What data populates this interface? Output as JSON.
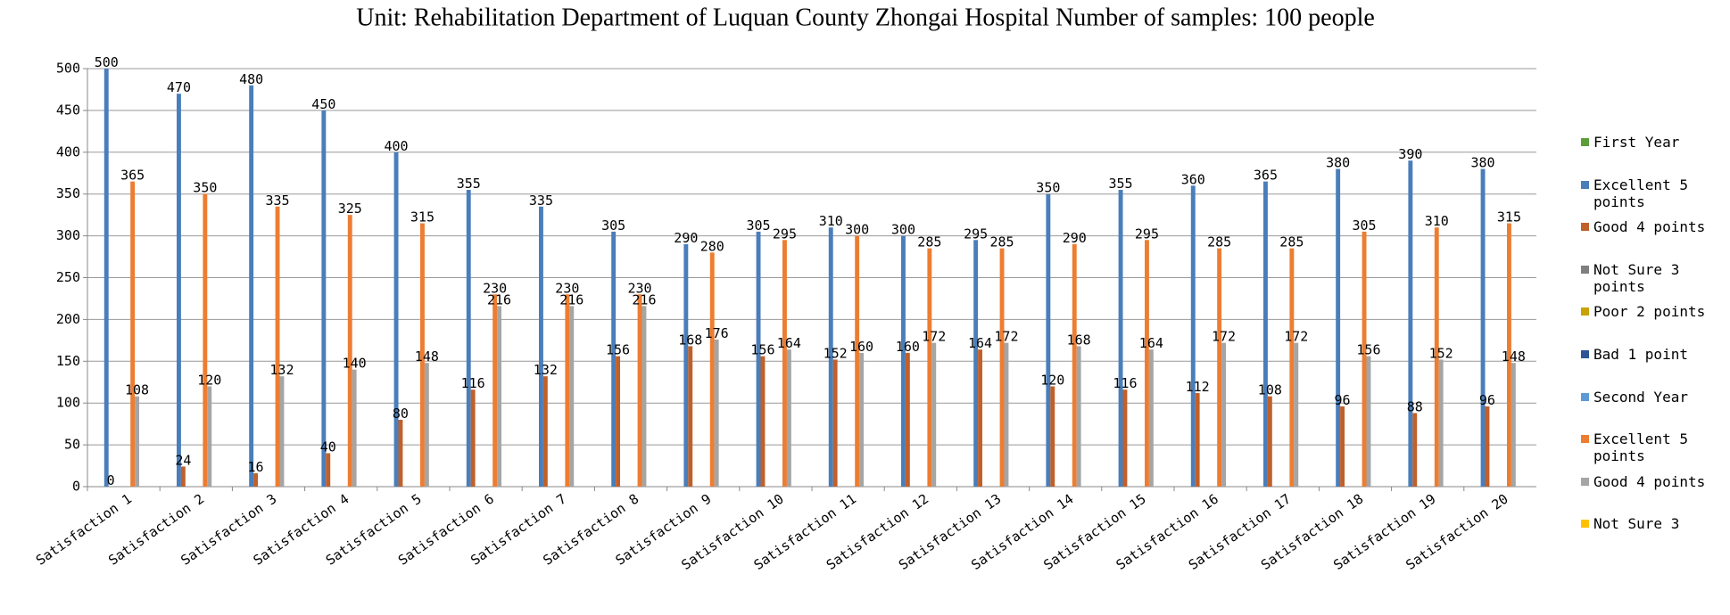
{
  "chart_data": {
    "type": "bar",
    "title": "Unit: Rehabilitation Department of Luquan County Zhongai Hospital    Number of samples: 100 people",
    "categories": [
      "Satisfaction 1",
      "Satisfaction 2",
      "Satisfaction 3",
      "Satisfaction 4",
      "Satisfaction 5",
      "Satisfaction 6",
      "Satisfaction 7",
      "Satisfaction 8",
      "Satisfaction 9",
      "Satisfaction 10",
      "Satisfaction 11",
      "Satisfaction 12",
      "Satisfaction 13",
      "Satisfaction 14",
      "Satisfaction 15",
      "Satisfaction 16",
      "Satisfaction 17",
      "Satisfaction 18",
      "Satisfaction 19",
      "Satisfaction 20"
    ],
    "series": [
      {
        "name": "First Year",
        "color": "#5a9e3a",
        "values": [
          0,
          0,
          0,
          0,
          0,
          0,
          0,
          0,
          0,
          0,
          0,
          0,
          0,
          0,
          0,
          0,
          0,
          0,
          0,
          0
        ]
      },
      {
        "name": "Excellent 5 points",
        "color": "#4a7ebb",
        "values": [
          500,
          470,
          480,
          450,
          400,
          355,
          335,
          305,
          290,
          305,
          310,
          300,
          295,
          350,
          355,
          360,
          365,
          380,
          390,
          380
        ]
      },
      {
        "name": "Good 4 points",
        "color": "#c0602a",
        "values": [
          0,
          24,
          16,
          40,
          80,
          116,
          132,
          156,
          168,
          156,
          152,
          160,
          164,
          120,
          116,
          112,
          108,
          96,
          88,
          96
        ]
      },
      {
        "name": "Not Sure 3 points",
        "color": "#7f7f7f",
        "values": [
          0,
          0,
          0,
          0,
          0,
          0,
          0,
          0,
          0,
          0,
          0,
          0,
          0,
          0,
          0,
          0,
          0,
          0,
          0,
          0
        ]
      },
      {
        "name": "Poor 2 points",
        "color": "#c9a100",
        "values": [
          0,
          0,
          0,
          0,
          0,
          0,
          0,
          0,
          0,
          0,
          0,
          0,
          0,
          0,
          0,
          0,
          0,
          0,
          0,
          0
        ]
      },
      {
        "name": "Bad 1 point",
        "color": "#2f5597",
        "values": [
          0,
          0,
          0,
          0,
          0,
          0,
          0,
          0,
          0,
          0,
          0,
          0,
          0,
          0,
          0,
          0,
          0,
          0,
          0,
          0
        ]
      },
      {
        "name": "Second Year",
        "color": "#5b9bd5",
        "values": [
          0,
          0,
          0,
          0,
          0,
          0,
          0,
          0,
          0,
          0,
          0,
          0,
          0,
          0,
          0,
          0,
          0,
          0,
          0,
          0
        ]
      },
      {
        "name": "Excellent 5 points",
        "color": "#ed7d31",
        "values": [
          365,
          350,
          335,
          325,
          315,
          230,
          230,
          230,
          280,
          295,
          300,
          285,
          285,
          290,
          295,
          285,
          285,
          305,
          310,
          315
        ]
      },
      {
        "name": "Good 4 points",
        "color": "#a5a5a5",
        "values": [
          108,
          120,
          132,
          140,
          148,
          216,
          216,
          216,
          176,
          164,
          160,
          172,
          172,
          168,
          164,
          172,
          172,
          156,
          152,
          148
        ]
      },
      {
        "name": "Not Sure 3",
        "color": "#ffc000",
        "values": [
          0,
          0,
          0,
          0,
          0,
          0,
          0,
          0,
          0,
          0,
          0,
          0,
          0,
          0,
          0,
          0,
          0,
          0,
          0,
          0
        ]
      }
    ],
    "ylim": [
      0,
      500
    ],
    "yticks": [
      0,
      50,
      100,
      150,
      200,
      250,
      300,
      350,
      400,
      450,
      500
    ],
    "grid": true,
    "legend": "right"
  }
}
